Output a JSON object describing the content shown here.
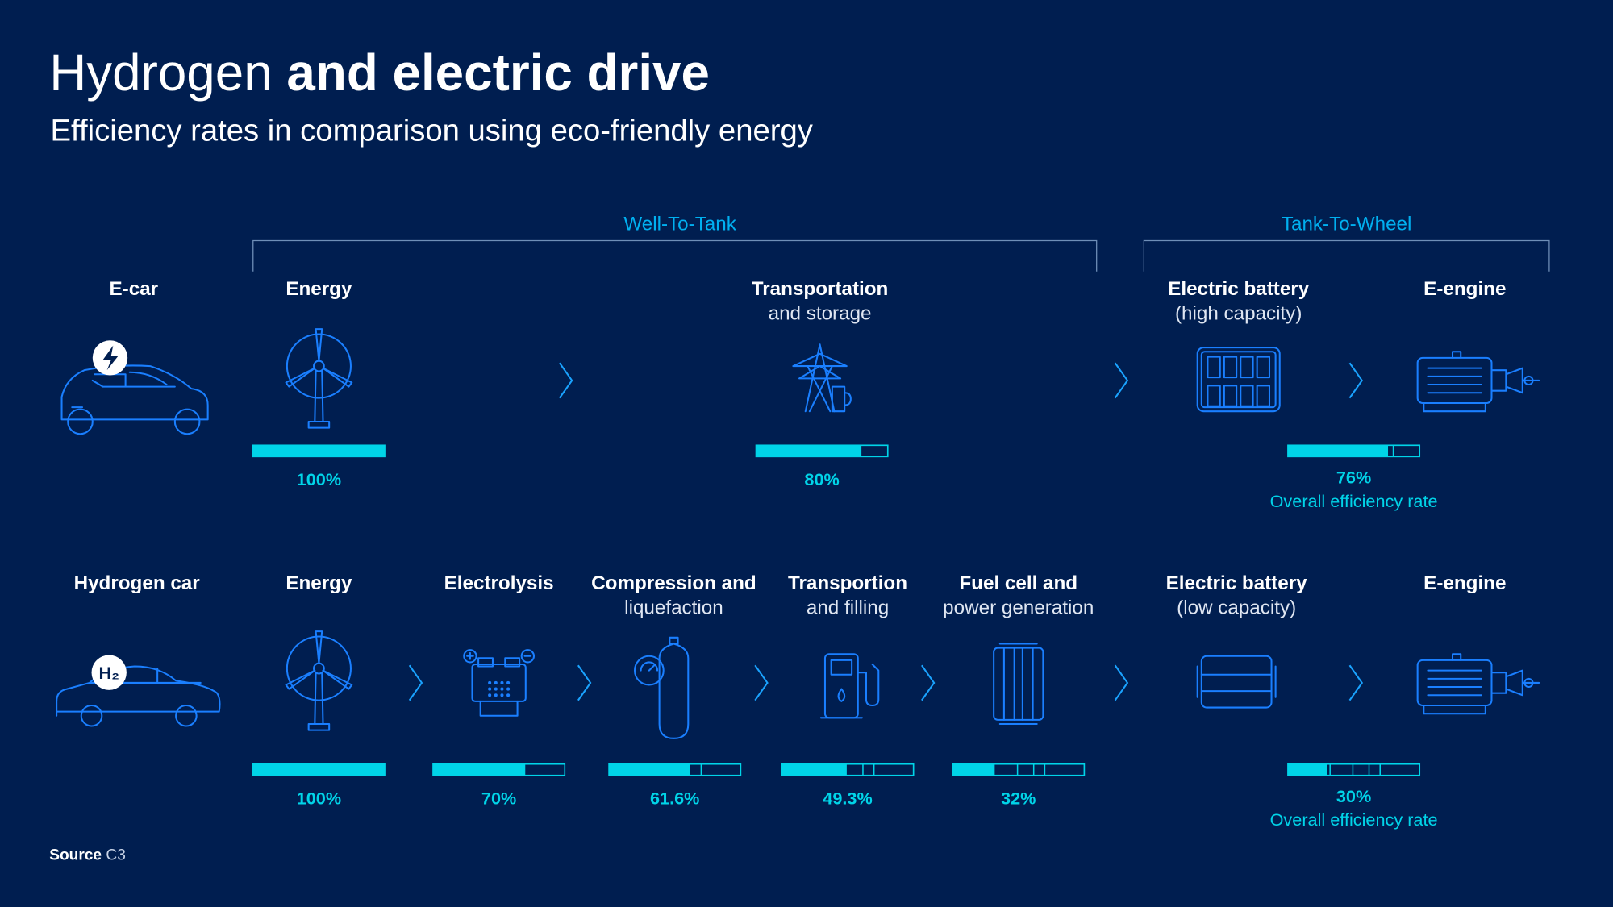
{
  "header": {
    "title_light": "Hydrogen",
    "title_bold": "and electric drive",
    "subtitle": "Efficiency rates in comparison using eco-friendly energy"
  },
  "phases": [
    {
      "label": "Well-To-Tank"
    },
    {
      "label": "Tank-To-Wheel"
    }
  ],
  "rows": [
    {
      "label": "E-car",
      "steps": [
        {
          "title": "Energy",
          "value": 100,
          "value_label": "100%"
        },
        {
          "title": "Transportation",
          "subtitle": "and storage",
          "value": 80,
          "value_label": "80%"
        },
        {
          "title": "Electric battery",
          "subtitle": "(high capacity)"
        },
        {
          "title": "E-engine"
        }
      ],
      "overall": {
        "value": 76,
        "value_label": "76%",
        "label": "Overall efficiency rate"
      }
    },
    {
      "label": "Hydrogen car",
      "badge": "H₂",
      "steps": [
        {
          "title": "Energy",
          "value": 100,
          "value_label": "100%"
        },
        {
          "title": "Electrolysis",
          "value": 70,
          "value_label": "70%"
        },
        {
          "title": "Compression and",
          "subtitle": "liquefaction",
          "value": 61.6,
          "value_label": "61.6%"
        },
        {
          "title": "Transportion",
          "subtitle": "and filling",
          "value": 49.3,
          "value_label": "49.3%"
        },
        {
          "title": "Fuel cell and",
          "subtitle": "power generation",
          "value": 32,
          "value_label": "32%"
        },
        {
          "title": "Electric battery",
          "subtitle": "(low capacity)"
        },
        {
          "title": "E-engine"
        }
      ],
      "overall": {
        "value": 30,
        "value_label": "30%",
        "label": "Overall efficiency rate"
      }
    }
  ],
  "source": {
    "label": "Source",
    "text": "C3"
  }
}
